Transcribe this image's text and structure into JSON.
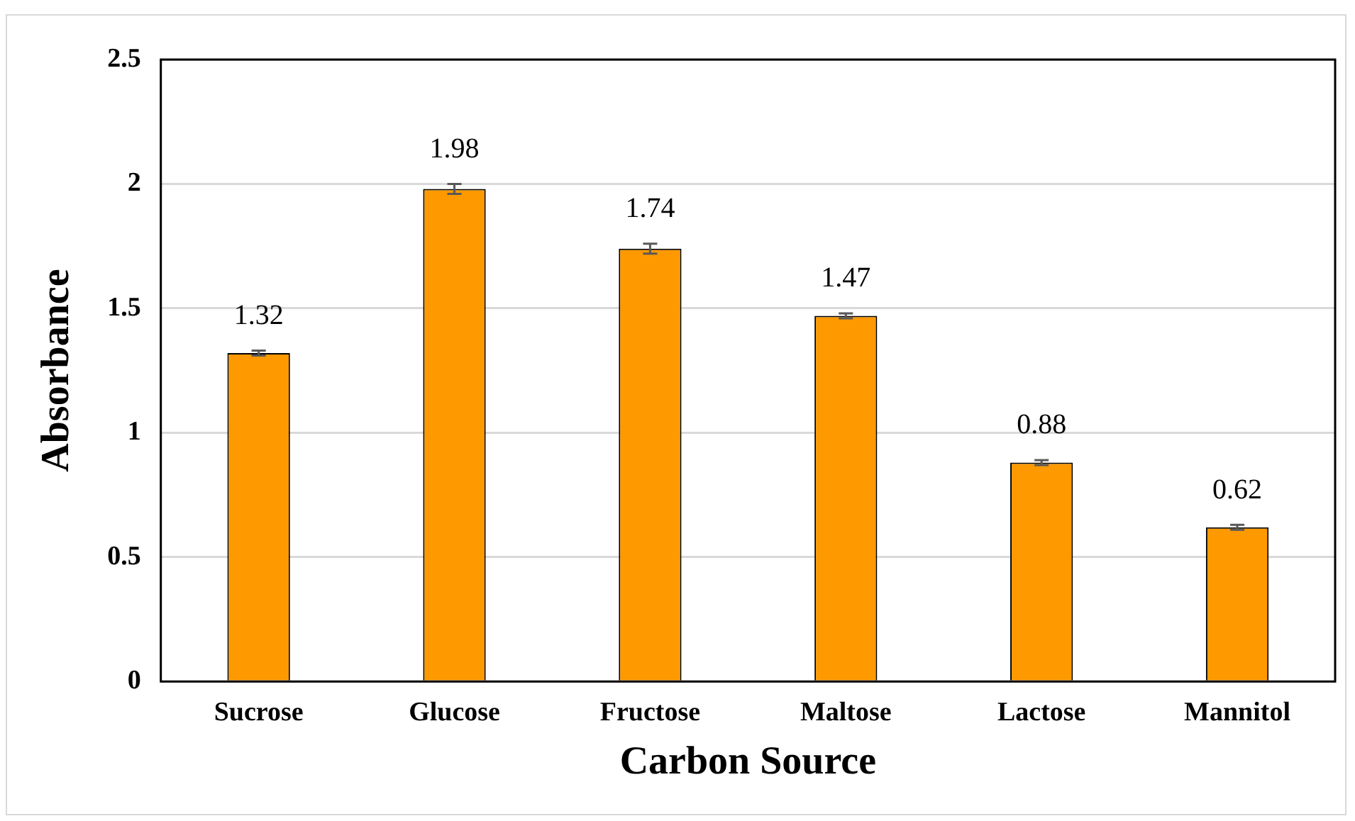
{
  "chart_data": {
    "type": "bar",
    "xlabel": "Carbon Source",
    "ylabel": "Absorbance",
    "categories": [
      "Sucrose",
      "Glucose",
      "Fructose",
      "Maltose",
      "Lactose",
      "Mannitol"
    ],
    "values": [
      1.32,
      1.98,
      1.74,
      1.47,
      0.88,
      0.62
    ],
    "errors": [
      0.01,
      0.02,
      0.02,
      0.01,
      0.01,
      0.01
    ],
    "color": "#ff9900",
    "ylim": [
      0,
      2.5
    ],
    "yticks": [
      0,
      0.5,
      1,
      1.5,
      2,
      2.5
    ],
    "grid": "y",
    "legend": false,
    "data_labels": true
  }
}
